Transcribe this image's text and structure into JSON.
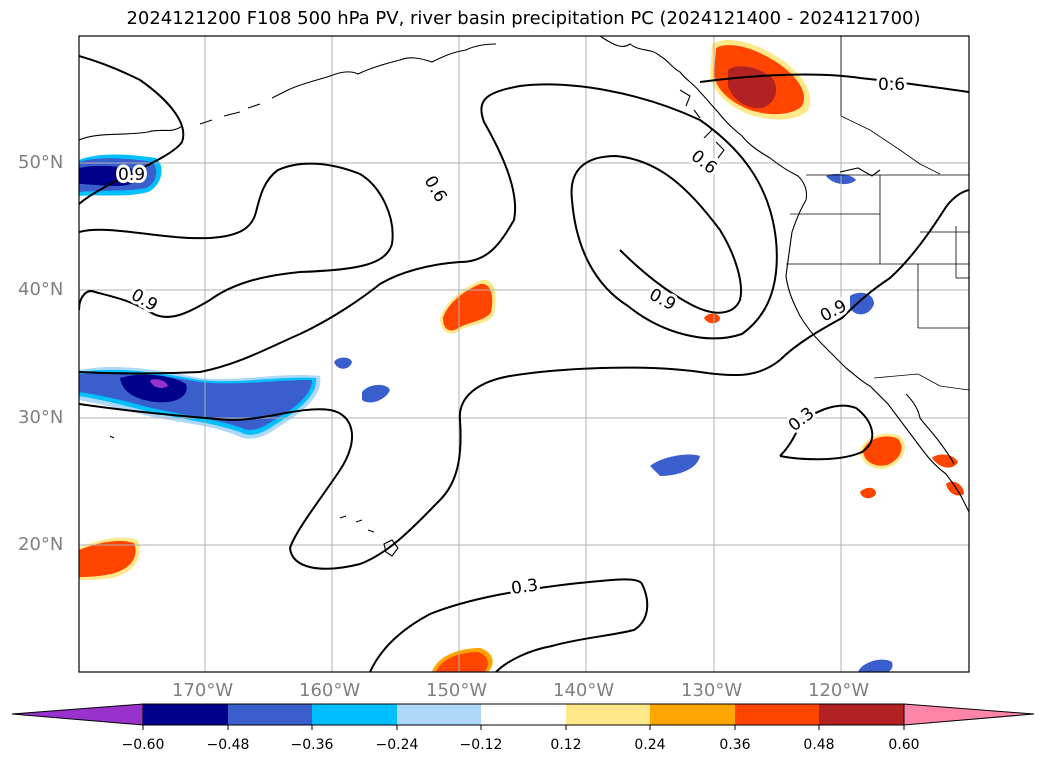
{
  "title": "2024121200 F108 500 hPa PV, river basin precipitation PC (2024121400 - 2024121700)",
  "latitude_labels": [
    "50°N",
    "40°N",
    "30°N",
    "20°N"
  ],
  "longitude_labels": [
    "170°W",
    "160°W",
    "150°W",
    "140°W",
    "130°W",
    "120°W"
  ],
  "contour_labels": [
    "0.6",
    "0.6",
    "0.6",
    "0.9",
    "0.9",
    "0.9",
    "0.9",
    "0.3",
    "0.3"
  ],
  "colorbar": {
    "ticks": [
      "−0.60",
      "−0.48",
      "−0.36",
      "−0.24",
      "−0.12",
      "0.12",
      "0.24",
      "0.36",
      "0.48",
      "0.60"
    ],
    "colors": [
      "#9932cc",
      "#00008b",
      "#3a5fcd",
      "#00bfff",
      "#add8f8",
      "#ffffff",
      "#ffe88a",
      "#ffa500",
      "#ff4500",
      "#b22222",
      "#ff85a8"
    ]
  }
}
